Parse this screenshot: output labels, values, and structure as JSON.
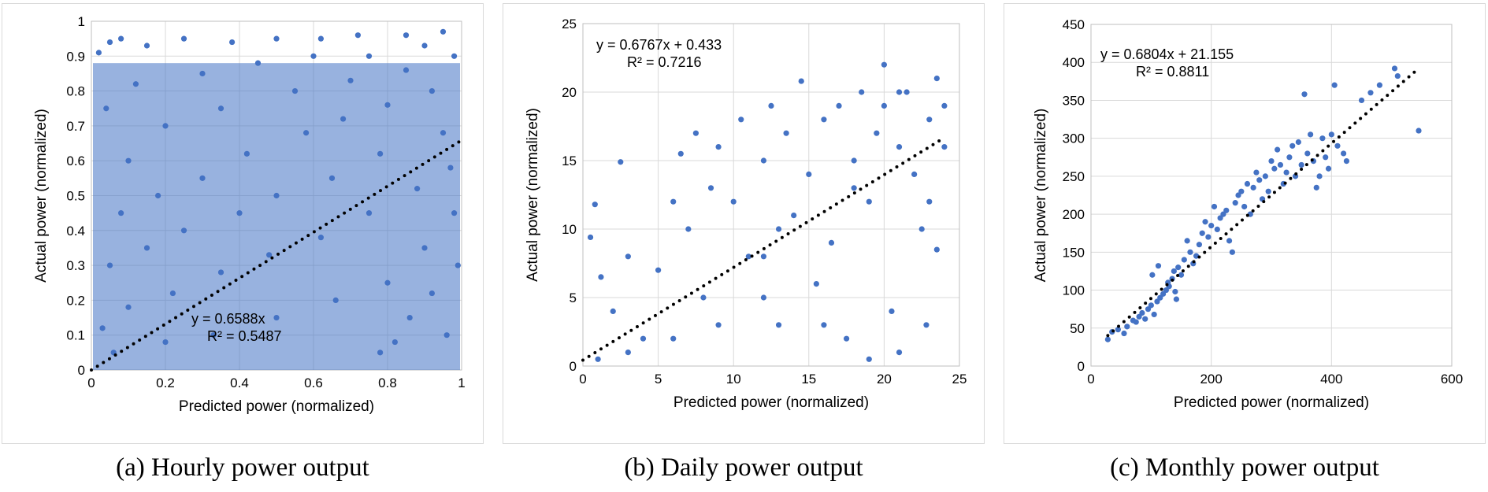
{
  "chart_data": [
    {
      "type": "scatter",
      "caption": "(a) Hourly power output",
      "xlabel": "Predicted power (normalized)",
      "ylabel": "Actual power (normalized)",
      "xlim": [
        0,
        1
      ],
      "ylim": [
        0,
        1
      ],
      "xticks": [
        0,
        0.2,
        0.4,
        0.6,
        0.8,
        1
      ],
      "yticks": [
        0,
        0.1,
        0.2,
        0.3,
        0.4,
        0.5,
        0.6,
        0.7,
        0.8,
        0.9,
        1
      ],
      "xtick_labels": [
        "0",
        "0.2",
        "0.4",
        "0.6",
        "0.8",
        "1"
      ],
      "ytick_labels": [
        "0",
        "0.1",
        "0.2",
        "0.3",
        "0.4",
        "0.5",
        "0.6",
        "0.7",
        "0.8",
        "0.9",
        "1"
      ],
      "grid": true,
      "marker_color": "#4472c4",
      "trendline": {
        "slope": 0.6588,
        "intercept": 0,
        "x_range": [
          0,
          1
        ],
        "style": "dotted",
        "color": "#000000"
      },
      "equation": "y = 0.6588x",
      "r2": "R² = 0.5487",
      "points": [
        [
          0.02,
          0.91
        ],
        [
          0.05,
          0.94
        ],
        [
          0.08,
          0.95
        ],
        [
          0.15,
          0.93
        ],
        [
          0.25,
          0.95
        ],
        [
          0.38,
          0.94
        ],
        [
          0.5,
          0.95
        ],
        [
          0.62,
          0.95
        ],
        [
          0.72,
          0.96
        ],
        [
          0.85,
          0.96
        ],
        [
          0.95,
          0.97
        ],
        [
          0.04,
          0.75
        ],
        [
          0.12,
          0.82
        ],
        [
          0.3,
          0.85
        ],
        [
          0.45,
          0.88
        ],
        [
          0.6,
          0.9
        ],
        [
          0.75,
          0.9
        ],
        [
          0.9,
          0.93
        ],
        [
          0.1,
          0.6
        ],
        [
          0.2,
          0.7
        ],
        [
          0.35,
          0.75
        ],
        [
          0.55,
          0.8
        ],
        [
          0.7,
          0.83
        ],
        [
          0.85,
          0.86
        ],
        [
          0.98,
          0.9
        ],
        [
          0.08,
          0.45
        ],
        [
          0.18,
          0.5
        ],
        [
          0.3,
          0.55
        ],
        [
          0.42,
          0.62
        ],
        [
          0.58,
          0.68
        ],
        [
          0.68,
          0.72
        ],
        [
          0.8,
          0.76
        ],
        [
          0.92,
          0.8
        ],
        [
          0.05,
          0.3
        ],
        [
          0.15,
          0.35
        ],
        [
          0.25,
          0.4
        ],
        [
          0.4,
          0.45
        ],
        [
          0.5,
          0.5
        ],
        [
          0.65,
          0.55
        ],
        [
          0.78,
          0.62
        ],
        [
          0.95,
          0.68
        ],
        [
          0.03,
          0.12
        ],
        [
          0.1,
          0.18
        ],
        [
          0.22,
          0.22
        ],
        [
          0.35,
          0.28
        ],
        [
          0.48,
          0.33
        ],
        [
          0.62,
          0.38
        ],
        [
          0.75,
          0.45
        ],
        [
          0.88,
          0.52
        ],
        [
          0.97,
          0.58
        ],
        [
          0.06,
          0.05
        ],
        [
          0.2,
          0.08
        ],
        [
          0.33,
          0.1
        ],
        [
          0.5,
          0.15
        ],
        [
          0.66,
          0.2
        ],
        [
          0.8,
          0.25
        ],
        [
          0.9,
          0.35
        ],
        [
          0.82,
          0.08
        ],
        [
          0.86,
          0.15
        ],
        [
          0.92,
          0.22
        ],
        [
          0.78,
          0.05
        ],
        [
          0.96,
          0.1
        ],
        [
          0.99,
          0.3
        ],
        [
          0.98,
          0.45
        ]
      ],
      "annotation_pos": "bottom-center"
    },
    {
      "type": "scatter",
      "caption": "(b) Daily power output",
      "xlabel": "Predicted power (normalized)",
      "ylabel": "Actual power (normalized)",
      "xlim": [
        0,
        25
      ],
      "ylim": [
        0,
        25
      ],
      "xticks": [
        0,
        5,
        10,
        15,
        20,
        25
      ],
      "yticks": [
        0,
        5,
        10,
        15,
        20,
        25
      ],
      "xtick_labels": [
        "0",
        "5",
        "10",
        "15",
        "20",
        "25"
      ],
      "ytick_labels": [
        "0",
        "5",
        "10",
        "15",
        "20",
        "25"
      ],
      "grid": true,
      "marker_color": "#4472c4",
      "trendline": {
        "slope": 0.6767,
        "intercept": 0.433,
        "x_range": [
          0,
          24
        ],
        "style": "dotted",
        "color": "#000000"
      },
      "equation": "y = 0.6767x + 0.433",
      "r2": "R² = 0.7216",
      "points": [
        [
          0.5,
          9.4
        ],
        [
          0.8,
          11.8
        ],
        [
          1.2,
          6.5
        ],
        [
          2,
          4
        ],
        [
          2.5,
          14.9
        ],
        [
          3,
          8
        ],
        [
          4,
          2
        ],
        [
          5,
          7
        ],
        [
          6,
          12
        ],
        [
          6.5,
          15.5
        ],
        [
          7,
          10
        ],
        [
          7.5,
          17
        ],
        [
          8,
          5
        ],
        [
          8.5,
          13
        ],
        [
          9,
          16
        ],
        [
          10,
          12
        ],
        [
          10.5,
          18
        ],
        [
          11,
          8
        ],
        [
          12,
          15
        ],
        [
          12.5,
          19
        ],
        [
          13,
          3
        ],
        [
          13.5,
          17
        ],
        [
          14,
          11
        ],
        [
          14.5,
          20.8
        ],
        [
          15,
          14
        ],
        [
          15.5,
          6
        ],
        [
          16,
          18
        ],
        [
          16.5,
          9
        ],
        [
          17,
          19
        ],
        [
          17.5,
          2
        ],
        [
          18,
          15
        ],
        [
          18.5,
          20
        ],
        [
          19,
          12
        ],
        [
          19.5,
          17
        ],
        [
          20,
          19
        ],
        [
          20.5,
          4
        ],
        [
          21,
          16
        ],
        [
          21.5,
          20
        ],
        [
          22,
          14
        ],
        [
          22.5,
          10
        ],
        [
          23,
          18
        ],
        [
          23.5,
          21
        ],
        [
          24,
          19
        ],
        [
          23.5,
          8.5
        ],
        [
          22.8,
          3
        ],
        [
          21,
          1
        ],
        [
          19,
          0.5
        ],
        [
          16,
          3
        ],
        [
          12,
          5
        ],
        [
          9,
          3
        ],
        [
          6,
          2
        ],
        [
          3,
          1
        ],
        [
          1,
          0.5
        ],
        [
          13,
          10
        ],
        [
          18,
          13
        ],
        [
          21,
          20
        ],
        [
          23,
          12
        ],
        [
          24,
          16
        ],
        [
          20,
          22
        ],
        [
          12,
          8
        ]
      ],
      "annotation_pos": "top-left"
    },
    {
      "type": "scatter",
      "caption": "(c) Monthly power output",
      "xlabel": "Predicted power (normalized)",
      "ylabel": "Actual power (normalized)",
      "xlim": [
        0,
        600
      ],
      "ylim": [
        0,
        450
      ],
      "xticks": [
        0,
        200,
        400,
        600
      ],
      "yticks": [
        0,
        50,
        100,
        150,
        200,
        250,
        300,
        350,
        400,
        450
      ],
      "xtick_labels": [
        "0",
        "200",
        "400",
        "600"
      ],
      "ytick_labels": [
        "0",
        "50",
        "100",
        "150",
        "200",
        "250",
        "300",
        "350",
        "400",
        "450"
      ],
      "grid": true,
      "marker_color": "#4472c4",
      "trendline": {
        "slope": 0.6804,
        "intercept": 21.155,
        "x_range": [
          28,
          545
        ],
        "style": "dotted",
        "color": "#000000"
      },
      "equation": "y = 0.6804x + 21.155",
      "r2": "R² = 0.8811",
      "points": [
        [
          28,
          35
        ],
        [
          35,
          45
        ],
        [
          45,
          48
        ],
        [
          55,
          43
        ],
        [
          60,
          52
        ],
        [
          70,
          60
        ],
        [
          75,
          58
        ],
        [
          80,
          65
        ],
        [
          85,
          70
        ],
        [
          90,
          62
        ],
        [
          95,
          75
        ],
        [
          100,
          80
        ],
        [
          102,
          120
        ],
        [
          105,
          68
        ],
        [
          110,
          85
        ],
        [
          112,
          132
        ],
        [
          115,
          90
        ],
        [
          120,
          95
        ],
        [
          125,
          100
        ],
        [
          128,
          110
        ],
        [
          130,
          105
        ],
        [
          135,
          115
        ],
        [
          138,
          125
        ],
        [
          140,
          98
        ],
        [
          142,
          88
        ],
        [
          145,
          130
        ],
        [
          150,
          120
        ],
        [
          155,
          140
        ],
        [
          160,
          165
        ],
        [
          165,
          150
        ],
        [
          170,
          135
        ],
        [
          175,
          145
        ],
        [
          180,
          160
        ],
        [
          185,
          175
        ],
        [
          190,
          190
        ],
        [
          195,
          170
        ],
        [
          200,
          185
        ],
        [
          205,
          210
        ],
        [
          210,
          180
        ],
        [
          215,
          195
        ],
        [
          220,
          200
        ],
        [
          225,
          205
        ],
        [
          230,
          165
        ],
        [
          235,
          150
        ],
        [
          240,
          215
        ],
        [
          245,
          225
        ],
        [
          250,
          230
        ],
        [
          255,
          210
        ],
        [
          260,
          240
        ],
        [
          265,
          200
        ],
        [
          270,
          235
        ],
        [
          275,
          255
        ],
        [
          280,
          245
        ],
        [
          285,
          220
        ],
        [
          290,
          250
        ],
        [
          295,
          230
        ],
        [
          300,
          270
        ],
        [
          305,
          260
        ],
        [
          310,
          285
        ],
        [
          315,
          265
        ],
        [
          320,
          240
        ],
        [
          325,
          255
        ],
        [
          330,
          275
        ],
        [
          335,
          290
        ],
        [
          340,
          250
        ],
        [
          345,
          295
        ],
        [
          350,
          265
        ],
        [
          355,
          358
        ],
        [
          360,
          280
        ],
        [
          365,
          305
        ],
        [
          370,
          270
        ],
        [
          375,
          235
        ],
        [
          380,
          250
        ],
        [
          385,
          300
        ],
        [
          390,
          275
        ],
        [
          395,
          260
        ],
        [
          400,
          305
        ],
        [
          405,
          370
        ],
        [
          410,
          290
        ],
        [
          420,
          280
        ],
        [
          425,
          270
        ],
        [
          450,
          350
        ],
        [
          465,
          360
        ],
        [
          480,
          370
        ],
        [
          505,
          392
        ],
        [
          510,
          382
        ],
        [
          545,
          310
        ]
      ],
      "annotation_pos": "top-left"
    }
  ]
}
